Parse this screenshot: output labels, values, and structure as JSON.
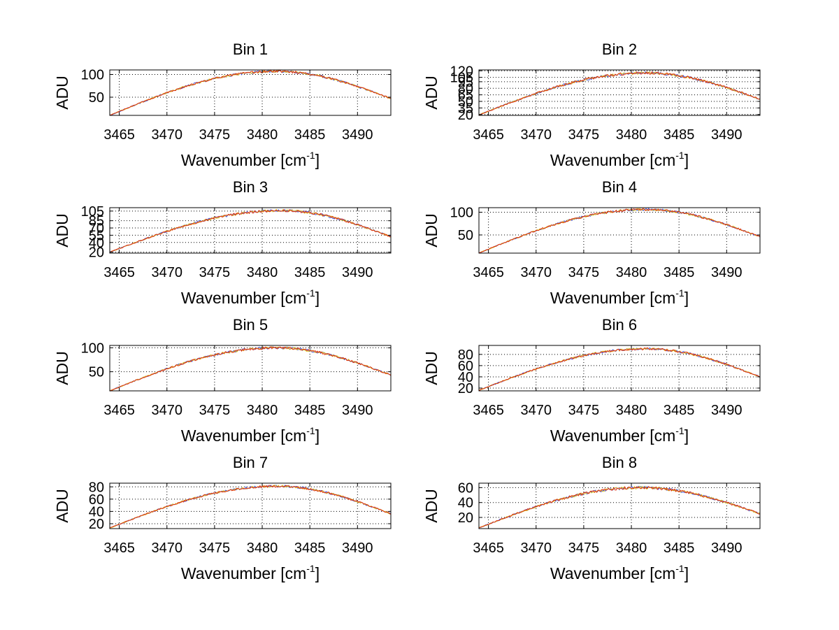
{
  "chart_data": [
    {
      "type": "line",
      "title": "Bin 1",
      "xlabel_main": "Wavenumber [cm",
      "xlabel_sup": "-1",
      "xlabel_tail": "]",
      "ylabel": "ADU",
      "xlim": [
        3464,
        3493.5
      ],
      "ylim": [
        10,
        110
      ],
      "xticks": [
        3465,
        3470,
        3475,
        3480,
        3485,
        3490
      ],
      "yticks": [
        50,
        100
      ],
      "grid": "dotted",
      "series": [
        {
          "name": "trace-blue",
          "color": "#3a4fd8"
        },
        {
          "name": "trace-yellow",
          "color": "#d9c020"
        },
        {
          "name": "trace-red",
          "color": "#e03010"
        }
      ],
      "shape": {
        "start": 10,
        "peak": 107,
        "peak_x": 3481.5,
        "end": 47,
        "noise": 2.5
      }
    },
    {
      "type": "line",
      "title": "Bin 2",
      "xlabel_main": "Wavenumber [cm",
      "xlabel_sup": "-1",
      "xlabel_tail": "]",
      "ylabel": "ADU",
      "xlim": [
        3464,
        3493.5
      ],
      "ylim": [
        18,
        122
      ],
      "xticks": [
        3465,
        3470,
        3475,
        3480,
        3485,
        3490
      ],
      "yticks": [
        20,
        35,
        50,
        65,
        80,
        95,
        105,
        120
      ],
      "grid": "dotted",
      "series": [
        {
          "name": "trace-blue",
          "color": "#3a4fd8"
        },
        {
          "name": "trace-yellow",
          "color": "#d9c020"
        },
        {
          "name": "trace-red",
          "color": "#e03010"
        }
      ],
      "shape": {
        "start": 19,
        "peak": 115,
        "peak_x": 3481.5,
        "end": 55,
        "noise": 3
      }
    },
    {
      "type": "line",
      "title": "Bin 3",
      "xlabel_main": "Wavenumber [cm",
      "xlabel_sup": "-1",
      "xlabel_tail": "]",
      "ylabel": "ADU",
      "xlim": [
        3464,
        3493.5
      ],
      "ylim": [
        18,
        112
      ],
      "xticks": [
        3465,
        3470,
        3475,
        3480,
        3485,
        3490
      ],
      "yticks": [
        20,
        40,
        55,
        70,
        85,
        105
      ],
      "grid": "dotted",
      "series": [
        {
          "name": "trace-blue",
          "color": "#3a4fd8"
        },
        {
          "name": "trace-yellow",
          "color": "#d9c020"
        },
        {
          "name": "trace-red",
          "color": "#e03010"
        }
      ],
      "shape": {
        "start": 20,
        "peak": 106,
        "peak_x": 3482,
        "end": 52,
        "noise": 2.5
      }
    },
    {
      "type": "line",
      "title": "Bin 4",
      "xlabel_main": "Wavenumber [cm",
      "xlabel_sup": "-1",
      "xlabel_tail": "]",
      "ylabel": "ADU",
      "xlim": [
        3464,
        3493.5
      ],
      "ylim": [
        10,
        110
      ],
      "xticks": [
        3465,
        3470,
        3475,
        3480,
        3485,
        3490
      ],
      "yticks": [
        50,
        100
      ],
      "grid": "dotted",
      "series": [
        {
          "name": "trace-blue",
          "color": "#3a4fd8"
        },
        {
          "name": "trace-yellow",
          "color": "#d9c020"
        },
        {
          "name": "trace-red",
          "color": "#e03010"
        }
      ],
      "shape": {
        "start": 10,
        "peak": 106,
        "peak_x": 3481.5,
        "end": 46,
        "noise": 2.5
      }
    },
    {
      "type": "line",
      "title": "Bin 5",
      "xlabel_main": "Wavenumber [cm",
      "xlabel_sup": "-1",
      "xlabel_tail": "]",
      "ylabel": "ADU",
      "xlim": [
        3464,
        3493.5
      ],
      "ylim": [
        10,
        105
      ],
      "xticks": [
        3465,
        3470,
        3475,
        3480,
        3485,
        3490
      ],
      "yticks": [
        50,
        100
      ],
      "grid": "dotted",
      "series": [
        {
          "name": "trace-blue",
          "color": "#3a4fd8"
        },
        {
          "name": "trace-yellow",
          "color": "#d9c020"
        },
        {
          "name": "trace-red",
          "color": "#e03010"
        }
      ],
      "shape": {
        "start": 10,
        "peak": 100,
        "peak_x": 3481.5,
        "end": 43,
        "noise": 2.5
      }
    },
    {
      "type": "line",
      "title": "Bin 6",
      "xlabel_main": "Wavenumber [cm",
      "xlabel_sup": "-1",
      "xlabel_tail": "]",
      "ylabel": "ADU",
      "xlim": [
        3464,
        3493.5
      ],
      "ylim": [
        15,
        96
      ],
      "xticks": [
        3465,
        3470,
        3475,
        3480,
        3485,
        3490
      ],
      "yticks": [
        20,
        40,
        60,
        80
      ],
      "grid": "dotted",
      "series": [
        {
          "name": "trace-blue",
          "color": "#3a4fd8"
        },
        {
          "name": "trace-yellow",
          "color": "#d9c020"
        },
        {
          "name": "trace-red",
          "color": "#e03010"
        }
      ],
      "shape": {
        "start": 16,
        "peak": 90,
        "peak_x": 3481.5,
        "end": 40,
        "noise": 2
      }
    },
    {
      "type": "line",
      "title": "Bin 7",
      "xlabel_main": "Wavenumber [cm",
      "xlabel_sup": "-1",
      "xlabel_tail": "]",
      "ylabel": "ADU",
      "xlim": [
        3464,
        3493.5
      ],
      "ylim": [
        12,
        86
      ],
      "xticks": [
        3465,
        3470,
        3475,
        3480,
        3485,
        3490
      ],
      "yticks": [
        20,
        40,
        60,
        80
      ],
      "grid": "dotted",
      "series": [
        {
          "name": "trace-blue",
          "color": "#3a4fd8"
        },
        {
          "name": "trace-yellow",
          "color": "#d9c020"
        },
        {
          "name": "trace-red",
          "color": "#e03010"
        }
      ],
      "shape": {
        "start": 13,
        "peak": 81,
        "peak_x": 3481.5,
        "end": 36,
        "noise": 1.8
      }
    },
    {
      "type": "line",
      "title": "Bin 8",
      "xlabel_main": "Wavenumber [cm",
      "xlabel_sup": "-1",
      "xlabel_tail": "]",
      "ylabel": "ADU",
      "xlim": [
        3464,
        3493.5
      ],
      "ylim": [
        5,
        66
      ],
      "xticks": [
        3465,
        3470,
        3475,
        3480,
        3485,
        3490
      ],
      "yticks": [
        20,
        40,
        60
      ],
      "grid": "dotted",
      "series": [
        {
          "name": "trace-blue",
          "color": "#3a4fd8"
        },
        {
          "name": "trace-yellow",
          "color": "#d9c020"
        },
        {
          "name": "trace-red",
          "color": "#e03010"
        }
      ],
      "shape": {
        "start": 6,
        "peak": 60,
        "peak_x": 3481,
        "end": 25,
        "noise": 1.8
      }
    }
  ]
}
